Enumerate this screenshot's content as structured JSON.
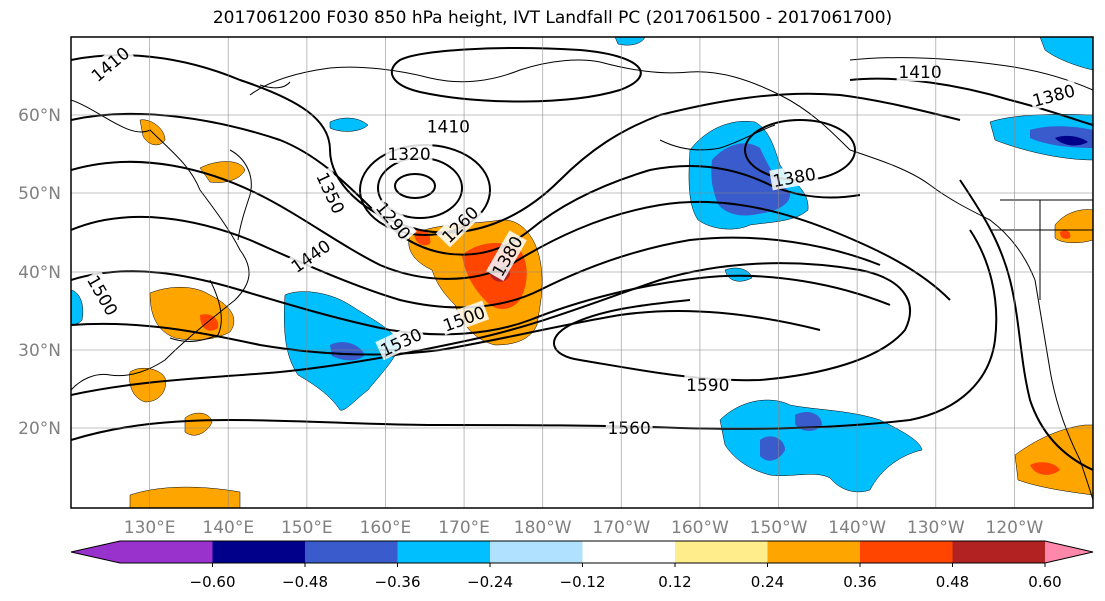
{
  "title": "2017061200 F030 850 hPa height, IVT Landfall PC (2017061500 - 2017061700)",
  "map": {
    "lat_labels": [
      "60°N",
      "50°N",
      "40°N",
      "30°N",
      "20°N"
    ],
    "lat_values": [
      60,
      50,
      40,
      30,
      20
    ],
    "lon_labels": [
      "130°E",
      "140°E",
      "150°E",
      "160°E",
      "170°E",
      "180°W",
      "170°W",
      "160°W",
      "150°W",
      "140°W",
      "130°W",
      "120°W"
    ],
    "lon_values": [
      130,
      140,
      150,
      160,
      170,
      180,
      190,
      200,
      210,
      220,
      230,
      240
    ],
    "lon_range": [
      120,
      250
    ],
    "lat_range": [
      10,
      70
    ],
    "grid": true,
    "contour_labels": [
      {
        "text": "1410",
        "lon": 125,
        "lat": 66.5,
        "angle": -40
      },
      {
        "text": "1410",
        "lon": 168,
        "lat": 58.5,
        "angle": 0
      },
      {
        "text": "1410",
        "lon": 228,
        "lat": 65.5,
        "angle": 0
      },
      {
        "text": "1380",
        "lon": 245,
        "lat": 62.5,
        "angle": -15
      },
      {
        "text": "1380",
        "lon": 212,
        "lat": 52,
        "angle": -10
      },
      {
        "text": "1320",
        "lon": 163,
        "lat": 55,
        "angle": 0
      },
      {
        "text": "1350",
        "lon": 153,
        "lat": 50,
        "angle": 65
      },
      {
        "text": "1290",
        "lon": 161,
        "lat": 46.5,
        "angle": 50
      },
      {
        "text": "1260",
        "lon": 169.5,
        "lat": 46,
        "angle": -45
      },
      {
        "text": "1380",
        "lon": 175.5,
        "lat": 42,
        "angle": -60
      },
      {
        "text": "1440",
        "lon": 150.5,
        "lat": 42,
        "angle": -35
      },
      {
        "text": "1500",
        "lon": 124,
        "lat": 37,
        "angle": 60
      },
      {
        "text": "1500",
        "lon": 170,
        "lat": 34,
        "angle": -20
      },
      {
        "text": "1530",
        "lon": 162,
        "lat": 31,
        "angle": -25
      },
      {
        "text": "1590",
        "lon": 201,
        "lat": 25.5,
        "angle": 0
      },
      {
        "text": "1560",
        "lon": 191,
        "lat": 20,
        "angle": 0
      }
    ]
  },
  "colorbar": {
    "labels": [
      "−0.60",
      "−0.48",
      "−0.36",
      "−0.24",
      "−0.12",
      "0.12",
      "0.24",
      "0.36",
      "0.48",
      "0.60"
    ],
    "colors": [
      "#9932cc",
      "#00008b",
      "#3a5bcc",
      "#00bfff",
      "#b0e2ff",
      "#ffffff",
      "#ffec8b",
      "#ffa500",
      "#ff4500",
      "#b22222",
      "#ff88aa"
    ],
    "under_color": "#9932cc",
    "over_color": "#ff88aa"
  }
}
